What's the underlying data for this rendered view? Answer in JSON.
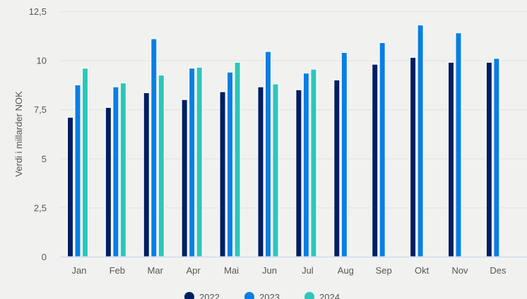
{
  "chart_data": {
    "type": "bar",
    "title": "",
    "xlabel": "",
    "ylabel": "Verdi i millarder NOK",
    "ylim": [
      0,
      12.5
    ],
    "yticks": [
      "0",
      "2,5",
      "5",
      "7,5",
      "10",
      "12,5"
    ],
    "ytick_values": [
      0,
      2.5,
      5,
      7.5,
      10,
      12.5
    ],
    "grid": true,
    "legend_position": "bottom",
    "categories": [
      "Jan",
      "Feb",
      "Mar",
      "Apr",
      "Mai",
      "Jun",
      "Jul",
      "Aug",
      "Sep",
      "Okt",
      "Nov",
      "Des"
    ],
    "series": [
      {
        "name": "2022",
        "color": "#001e61",
        "values": [
          7.1,
          7.6,
          8.35,
          8.0,
          8.4,
          8.65,
          8.5,
          9.0,
          9.8,
          10.15,
          9.9,
          9.9
        ]
      },
      {
        "name": "2023",
        "color": "#0a7ee3",
        "values": [
          8.75,
          8.65,
          11.1,
          9.6,
          9.4,
          10.45,
          9.35,
          10.4,
          10.9,
          11.8,
          11.4,
          10.1
        ]
      },
      {
        "name": "2024",
        "color": "#2ec6b8",
        "values": [
          9.6,
          8.85,
          9.25,
          9.65,
          9.9,
          8.8,
          9.55,
          null,
          null,
          null,
          null,
          null
        ]
      }
    ]
  }
}
